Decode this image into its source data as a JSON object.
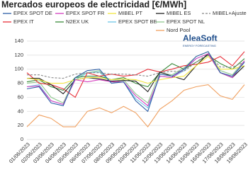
{
  "chart_data": {
    "type": "line",
    "title": "Mercados europeos de electricidad [€/MWh]",
    "logo": {
      "name": "AleaSoft",
      "tagline": "ENERGY FORECASTING"
    },
    "x": [
      "01/06/2023",
      "02/06/2023",
      "03/06/2023",
      "04/06/2023",
      "05/06/2023",
      "06/06/2023",
      "07/06/2023",
      "08/06/2023",
      "09/06/2023",
      "10/06/2023",
      "11/06/2023",
      "12/06/2023",
      "13/06/2023",
      "14/06/2023",
      "15/06/2023",
      "16/06/2023",
      "17/06/2023",
      "18/06/2023",
      "19/06/2023"
    ],
    "ylim": [
      0,
      140
    ],
    "yticks": [
      0,
      20,
      40,
      60,
      80,
      100,
      120,
      140
    ],
    "grid": true,
    "series": [
      {
        "name": "EPEX SPOT DE",
        "color": "#2e5fa8",
        "values": [
          72,
          75,
          52,
          48,
          88,
          98,
          100,
          80,
          82,
          55,
          40,
          93,
          90,
          100,
          118,
          125,
          95,
          90,
          110
        ]
      },
      {
        "name": "EPEX SPOT FR",
        "color": "#d43fbf",
        "values": [
          75,
          76,
          55,
          50,
          85,
          82,
          85,
          82,
          82,
          62,
          48,
          90,
          88,
          100,
          115,
          122,
          95,
          88,
          112
        ]
      },
      {
        "name": "MIBEL PT",
        "color": "#f2e640",
        "values": [
          87,
          85,
          80,
          80,
          85,
          88,
          88,
          85,
          86,
          85,
          80,
          85,
          88,
          90,
          105,
          118,
          100,
          100,
          105
        ]
      },
      {
        "name": "MIBEL ES",
        "color": "#222222",
        "values": [
          87,
          87,
          78,
          65,
          85,
          88,
          86,
          83,
          84,
          83,
          68,
          96,
          90,
          85,
          105,
          122,
          95,
          88,
          105
        ]
      },
      {
        "name": "MIBEL+Ajuste",
        "color": "#888888",
        "style": "dashed",
        "values": [
          92,
          92,
          88,
          87,
          93,
          95,
          95,
          93,
          93,
          92,
          90,
          95,
          97,
          97,
          110,
          122,
          103,
          103,
          110
        ]
      },
      {
        "name": "EPEX IT",
        "color": "#e8303a",
        "values": [
          95,
          80,
          78,
          72,
          60,
          95,
          90,
          93,
          90,
          92,
          100,
          96,
          100,
          105,
          107,
          110,
          118,
          105,
          125
        ]
      },
      {
        "name": "N2EX UK",
        "color": "#3a8a3a",
        "values": [
          82,
          85,
          75,
          70,
          88,
          90,
          90,
          85,
          88,
          80,
          75,
          95,
          108,
          100,
          110,
          120,
          108,
          100,
          115
        ]
      },
      {
        "name": "EPEX SPOT BE",
        "color": "#6ec6e8",
        "values": [
          75,
          78,
          55,
          50,
          85,
          95,
          96,
          80,
          82,
          58,
          45,
          90,
          88,
          98,
          115,
          122,
          95,
          88,
          110
        ]
      },
      {
        "name": "EPEX SPOT NL",
        "color": "#90c890",
        "values": [
          80,
          82,
          60,
          52,
          88,
          95,
          98,
          80,
          85,
          65,
          52,
          95,
          92,
          102,
          118,
          125,
          98,
          92,
          112
        ]
      },
      {
        "name": "Nord Pool",
        "color": "#f0a060",
        "values": [
          18,
          35,
          30,
          18,
          18,
          40,
          45,
          38,
          47,
          38,
          18,
          43,
          55,
          70,
          75,
          78,
          62,
          57,
          78
        ]
      }
    ]
  }
}
